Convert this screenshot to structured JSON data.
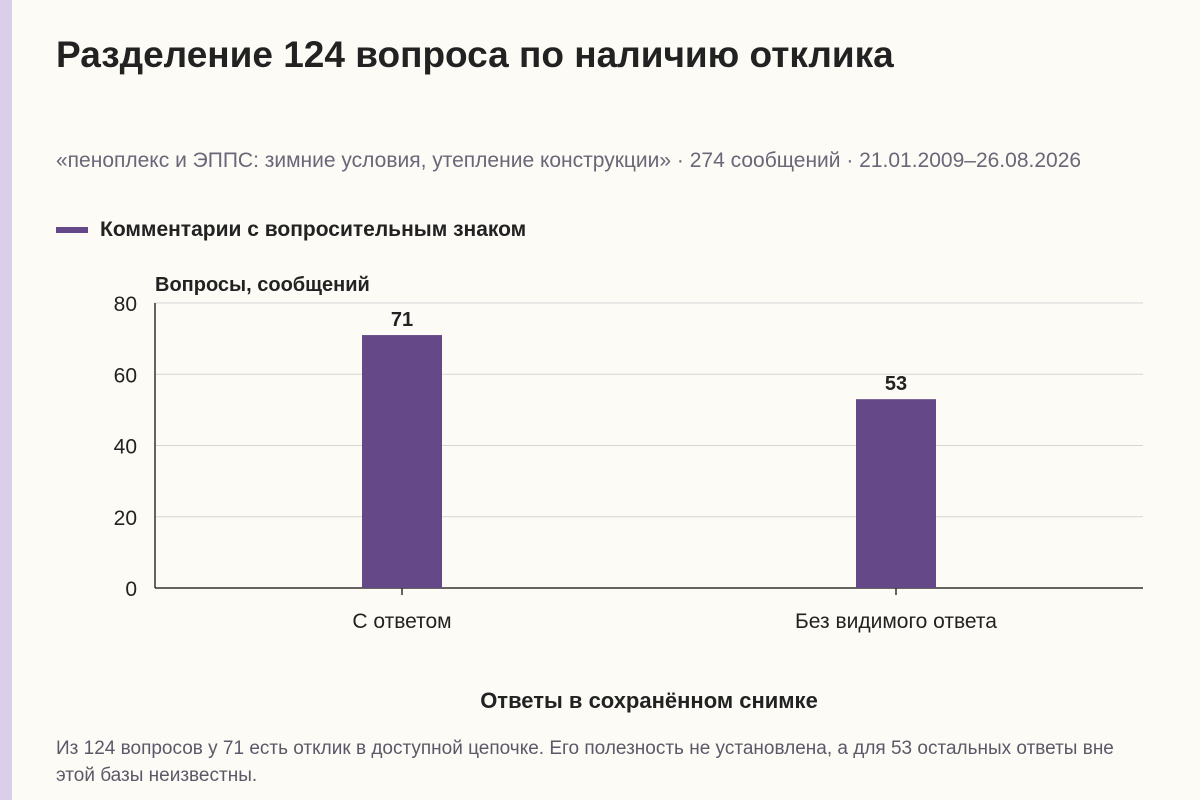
{
  "chart_data": {
    "type": "bar",
    "title": "Разделение 124 вопроса по наличию отклика",
    "subtitle": "«пеноплекс и ЭППС: зимние условия, утепление конструкции» · 274 сообщений · 21.01.2009–26.08.2026",
    "categories": [
      "С ответом",
      "Без видимого ответа"
    ],
    "series": [
      {
        "name": "Комментарии с вопросительным знаком",
        "values": [
          71,
          53
        ],
        "color": "#654887"
      }
    ],
    "data_labels": [
      "71",
      "53"
    ],
    "ylabel": "Вопросы, сообщений",
    "xlabel": "Ответы в сохранённом снимке",
    "ylim": [
      0,
      80
    ],
    "yticks": [
      0,
      20,
      40,
      60,
      80
    ],
    "grid": true,
    "legend": "top-left"
  },
  "footnote": "Из 124 вопросов у 71 есть отклик в доступной цепочке. Его полезность не установлена, а для 53 остальных ответы вне этой базы неизвестны.",
  "colors": {
    "bar": "#654887",
    "background": "#fcfbf5",
    "grid": "#d6d6d6",
    "side_stripe": "#d9cfe9"
  }
}
